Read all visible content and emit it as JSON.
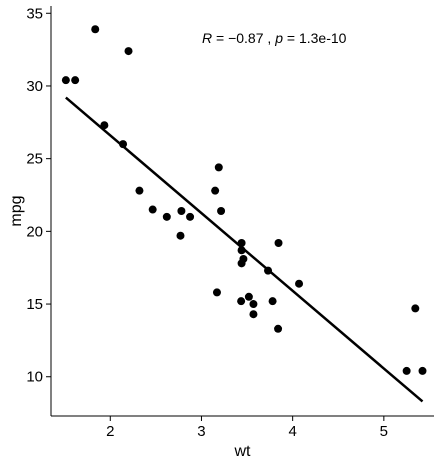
{
  "chart_data": {
    "type": "scatter",
    "title": "",
    "xlabel": "wt",
    "ylabel": "mpg",
    "xlim": [
      1.35,
      5.55
    ],
    "ylim": [
      7.3,
      35.5
    ],
    "xticks": [
      2,
      3,
      4,
      5
    ],
    "yticks": [
      10,
      15,
      20,
      25,
      30,
      35
    ],
    "xtick_labels": [
      "2",
      "3",
      "4",
      "5"
    ],
    "ytick_labels": [
      "10",
      "15",
      "20",
      "25",
      "30",
      "35"
    ],
    "grid": false,
    "legend": "none",
    "point_color": "#000000",
    "line_color": "#000000",
    "annotation": {
      "r_label": "R",
      "r_text": " = −0.87 , ",
      "p_label": "p",
      "p_text": " = 1.3e-10"
    },
    "points": [
      {
        "x": 1.513,
        "y": 30.4
      },
      {
        "x": 1.615,
        "y": 30.4
      },
      {
        "x": 1.835,
        "y": 33.9
      },
      {
        "x": 1.935,
        "y": 27.3
      },
      {
        "x": 2.14,
        "y": 26.0
      },
      {
        "x": 2.2,
        "y": 32.4
      },
      {
        "x": 2.32,
        "y": 22.8
      },
      {
        "x": 2.465,
        "y": 21.5
      },
      {
        "x": 2.62,
        "y": 21.0
      },
      {
        "x": 2.77,
        "y": 19.7
      },
      {
        "x": 2.78,
        "y": 21.4
      },
      {
        "x": 2.875,
        "y": 21.0
      },
      {
        "x": 3.15,
        "y": 22.8
      },
      {
        "x": 3.17,
        "y": 15.8
      },
      {
        "x": 3.19,
        "y": 24.4
      },
      {
        "x": 3.215,
        "y": 21.4
      },
      {
        "x": 3.435,
        "y": 15.2
      },
      {
        "x": 3.44,
        "y": 18.7
      },
      {
        "x": 3.44,
        "y": 19.2
      },
      {
        "x": 3.44,
        "y": 17.8
      },
      {
        "x": 3.46,
        "y": 18.1
      },
      {
        "x": 3.52,
        "y": 15.5
      },
      {
        "x": 3.57,
        "y": 14.3
      },
      {
        "x": 3.57,
        "y": 15.0
      },
      {
        "x": 3.73,
        "y": 17.3
      },
      {
        "x": 3.78,
        "y": 15.2
      },
      {
        "x": 3.84,
        "y": 13.3
      },
      {
        "x": 3.845,
        "y": 19.2
      },
      {
        "x": 4.07,
        "y": 16.4
      },
      {
        "x": 5.25,
        "y": 10.4
      },
      {
        "x": 5.345,
        "y": 14.7
      },
      {
        "x": 5.424,
        "y": 10.4
      }
    ],
    "regression": {
      "x": [
        1.513,
        5.424
      ],
      "y": [
        29.2,
        8.3
      ]
    }
  }
}
